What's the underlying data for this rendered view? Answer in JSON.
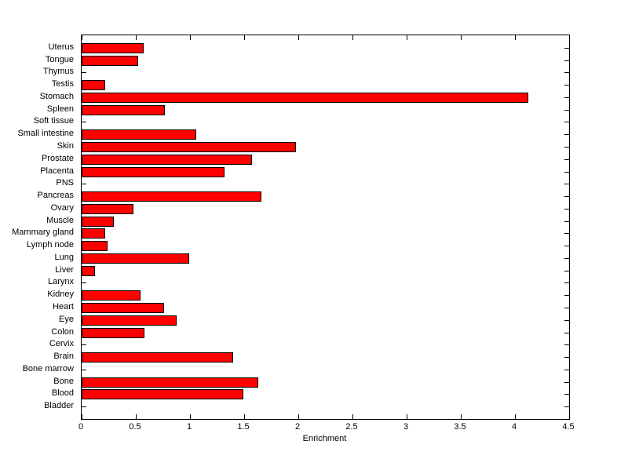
{
  "chart_data": {
    "type": "bar",
    "orientation": "horizontal",
    "title": "",
    "xlabel": "Enrichment",
    "ylabel": "",
    "xlim": [
      0,
      4.5
    ],
    "grid": false,
    "legend": null,
    "bar_color": "#FF0000",
    "bar_edge_color": "#000000",
    "axis_color": "#000000",
    "background_color": "#FFFFFF",
    "xticks": [
      0,
      0.5,
      1,
      1.5,
      2,
      2.5,
      3,
      3.5,
      4,
      4.5
    ],
    "xtick_labels": [
      "0",
      "0.5",
      "1",
      "1.5",
      "2",
      "2.5",
      "3",
      "3.5",
      "4",
      "4.5"
    ],
    "categories": [
      "Uterus",
      "Tongue",
      "Thymus",
      "Testis",
      "Stomach",
      "Spleen",
      "Soft tissue",
      "Small intestine",
      "Skin",
      "Prostate",
      "Placenta",
      "PNS",
      "Pancreas",
      "Ovary",
      "Muscle",
      "Mammary gland",
      "Lymph node",
      "Lung",
      "Liver",
      "Larynx",
      "Kidney",
      "Heart",
      "Eye",
      "Colon",
      "Cervix",
      "Brain",
      "Bone marrow",
      "Bone",
      "Blood",
      "Bladder"
    ],
    "values": [
      0.57,
      0.52,
      0,
      0.22,
      4.12,
      0.77,
      0,
      1.06,
      1.98,
      1.57,
      1.32,
      0,
      1.66,
      0.48,
      0.3,
      0.22,
      0.24,
      0.99,
      0.12,
      0,
      0.54,
      0.76,
      0.88,
      0.58,
      0,
      1.4,
      0,
      1.63,
      1.49,
      0
    ]
  }
}
